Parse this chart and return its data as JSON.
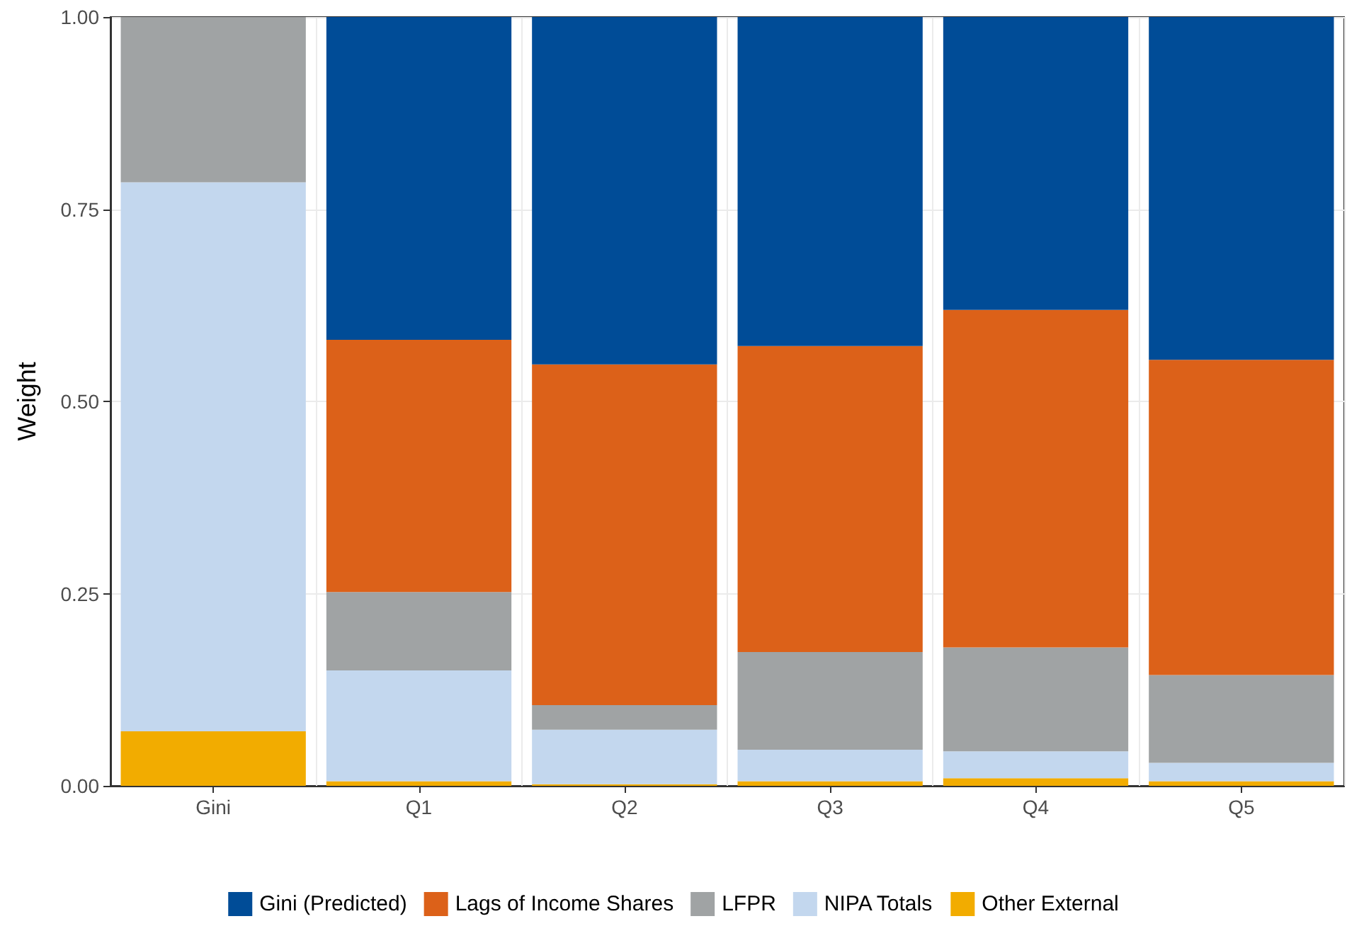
{
  "chart_data": {
    "type": "bar",
    "ylabel": "Weight",
    "categories": [
      "Gini",
      "Q1",
      "Q2",
      "Q3",
      "Q4",
      "Q5"
    ],
    "stacked": true,
    "series": [
      {
        "name": "Other External",
        "color": "#f2ac00",
        "values": [
          0.071,
          0.006,
          0.002,
          0.006,
          0.01,
          0.006
        ]
      },
      {
        "name": "NIPA Totals",
        "color": "#c3d7ee",
        "values": [
          0.714,
          0.144,
          0.071,
          0.041,
          0.035,
          0.024
        ]
      },
      {
        "name": "LFPR",
        "color": "#a0a3a4",
        "values": [
          0.215,
          0.102,
          0.032,
          0.127,
          0.135,
          0.114
        ]
      },
      {
        "name": "Lags of Income Shares",
        "color": "#dc6119",
        "values": [
          null,
          0.328,
          0.443,
          0.398,
          0.439,
          0.41
        ]
      },
      {
        "name": "Gini (Predicted)",
        "color": "#004c97",
        "values": [
          null,
          0.42,
          0.452,
          0.428,
          0.381,
          0.446
        ]
      }
    ],
    "ylim": [
      0,
      1
    ],
    "yticks": [
      {
        "value": 0,
        "label": "0.00"
      },
      {
        "value": 0.25,
        "label": "0.25"
      },
      {
        "value": 0.5,
        "label": "0.50"
      },
      {
        "value": 0.75,
        "label": "0.75"
      },
      {
        "value": 1,
        "label": "1.00"
      }
    ],
    "grid": true,
    "legend": "bottom"
  }
}
